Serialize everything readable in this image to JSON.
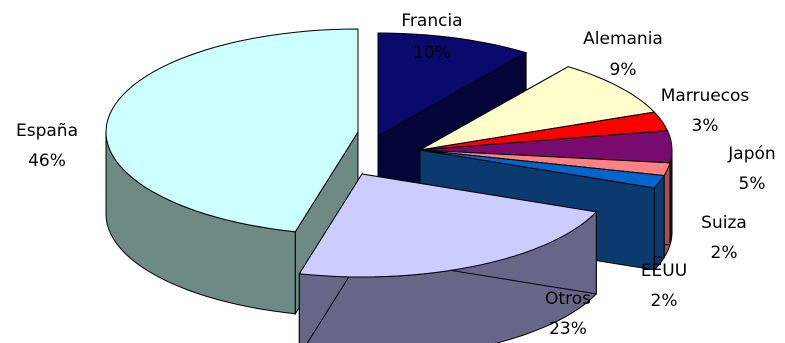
{
  "chart_data": {
    "type": "pie",
    "title": "",
    "slices": [
      {
        "name": "Francia",
        "value": 10,
        "label": "10%",
        "color": "#0a0a6e"
      },
      {
        "name": "Alemania",
        "value": 9,
        "label": "9%",
        "color": "#ffffcc"
      },
      {
        "name": "Marruecos",
        "value": 3,
        "label": "3%",
        "color": "#ff0000"
      },
      {
        "name": "Japón",
        "value": 5,
        "label": "5%",
        "color": "#7a0b6e"
      },
      {
        "name": "Suiza",
        "value": 2,
        "label": "2%",
        "color": "#ff8080"
      },
      {
        "name": "EEUU",
        "value": 2,
        "label": "2%",
        "color": "#0066cc"
      },
      {
        "name": "Otros",
        "value": 23,
        "label": "23%",
        "color": "#ccccff"
      },
      {
        "name": "España",
        "value": 46,
        "label": "46%",
        "color": "#ccffff"
      }
    ],
    "legend": "none",
    "style": "exploded-3d",
    "colors": {
      "background": "#ffffff",
      "outline": "#000000",
      "side_españa": "#6e8a84",
      "side_otros": "#666688",
      "side_suiza": "#a05050",
      "side_eeuu": "#0a3a6e",
      "side_japon": "#3a0836",
      "side_marruecos": "#800000",
      "side_alemania": "#808066",
      "side_francia": "#05053a"
    }
  }
}
